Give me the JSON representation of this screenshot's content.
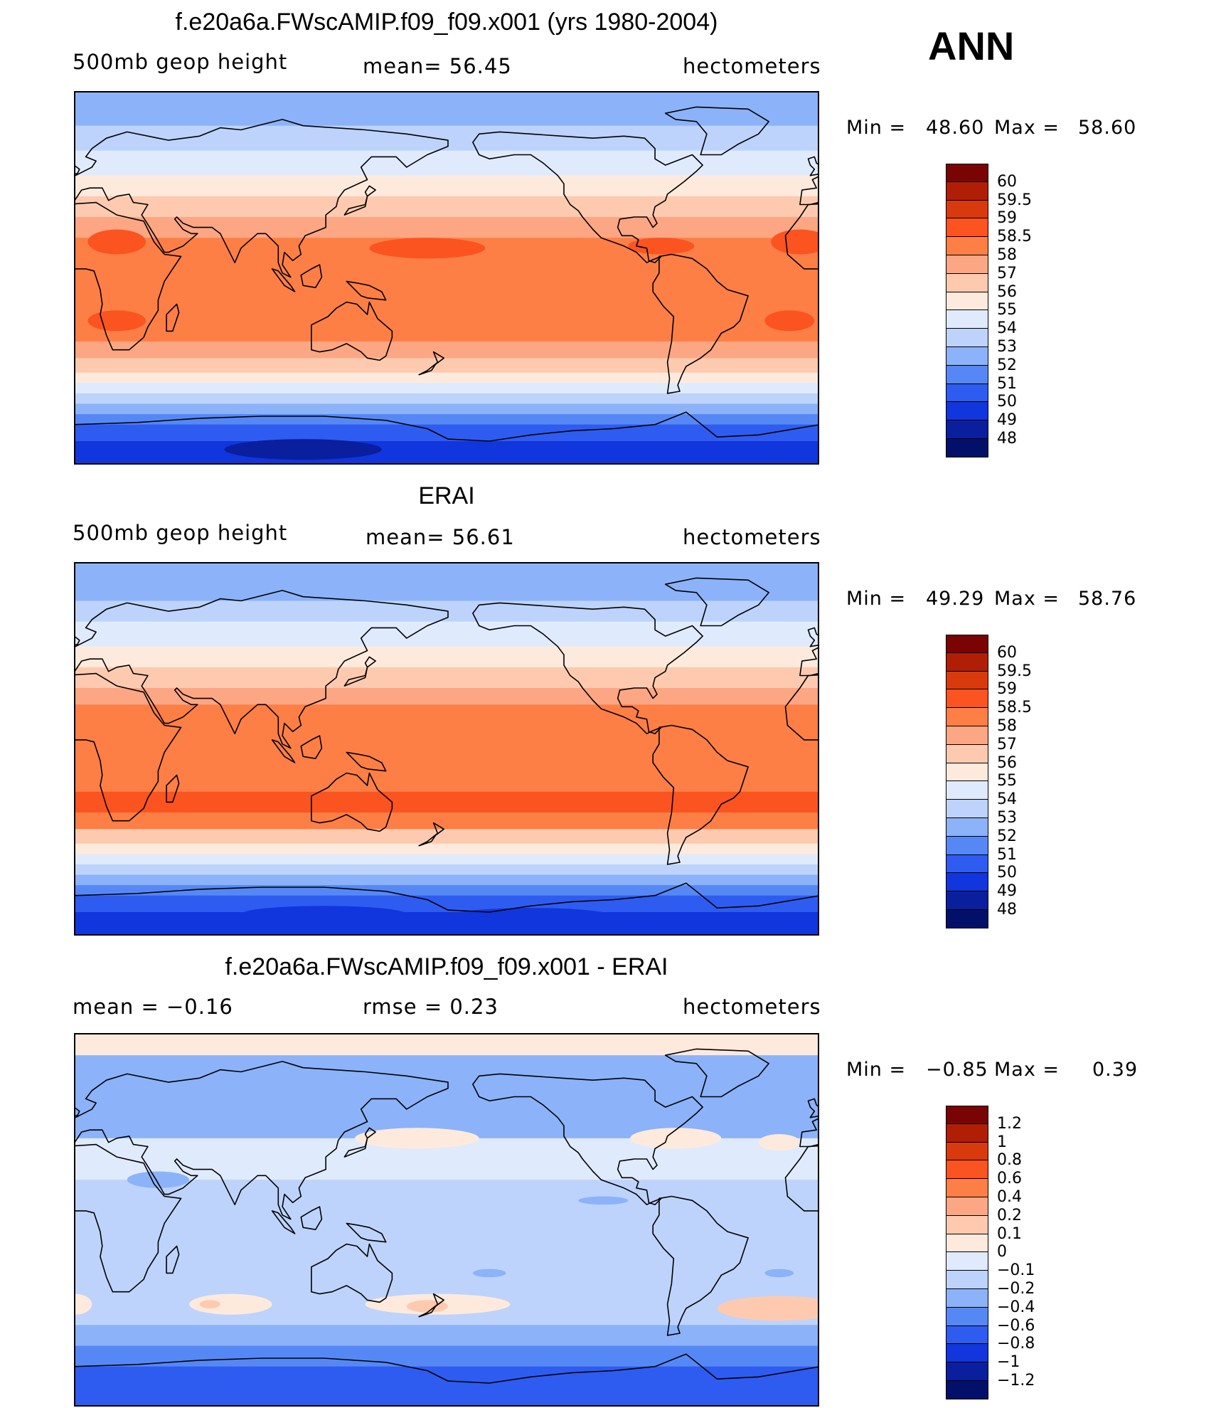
{
  "season": "ANN",
  "panels": [
    {
      "title": "f.e20a6a.FWscAMIP.f09_f09.x001 (yrs 1980-2004)",
      "left_label": "500mb  geop  height",
      "center_label": "mean=   56.45",
      "units": "hectometers",
      "min_label": "Min  =",
      "min_value": "48.60",
      "max_label": "Max  =",
      "max_value": "58.60",
      "colorbar": [
        "60",
        "59.5",
        "59",
        "58.5",
        "58",
        "57",
        "56",
        "55",
        "54",
        "53",
        "52",
        "51",
        "50",
        "49",
        "48"
      ],
      "variant": "model"
    },
    {
      "title": "ERAI",
      "left_label": "500mb  geop  height",
      "center_label": "mean=   56.61",
      "units": "hectometers",
      "min_label": "Min  =",
      "min_value": "49.29",
      "max_label": "Max  =",
      "max_value": "58.76",
      "colorbar": [
        "60",
        "59.5",
        "59",
        "58.5",
        "58",
        "57",
        "56",
        "55",
        "54",
        "53",
        "52",
        "51",
        "50",
        "49",
        "48"
      ],
      "variant": "obs"
    },
    {
      "title": "f.e20a6a.FWscAMIP.f09_f09.x001 - ERAI",
      "left_label": "mean  =    −0.16",
      "center_label": "rmse  =     0.23",
      "units": "hectometers",
      "min_label": "Min  =",
      "min_value": "−0.85",
      "max_label": "Max  =",
      "max_value": "0.39",
      "colorbar": [
        "1.2",
        "1",
        "0.8",
        "0.6",
        "0.4",
        "0.2",
        "0.1",
        "0",
        "−0.1",
        "−0.2",
        "−0.4",
        "−0.6",
        "−0.8",
        "−1",
        "−1.2"
      ],
      "variant": "diff"
    }
  ],
  "colors": {
    "palette": [
      "#7a0403",
      "#b01f05",
      "#d93a0d",
      "#fb5420",
      "#fd7f45",
      "#fca683",
      "#fdcab0",
      "#feeadc",
      "#dfeafc",
      "#bdd3fb",
      "#8cb2f9",
      "#5688f5",
      "#2e5cf0",
      "#1136dd",
      "#0a1f9e",
      "#03106a"
    ]
  }
}
